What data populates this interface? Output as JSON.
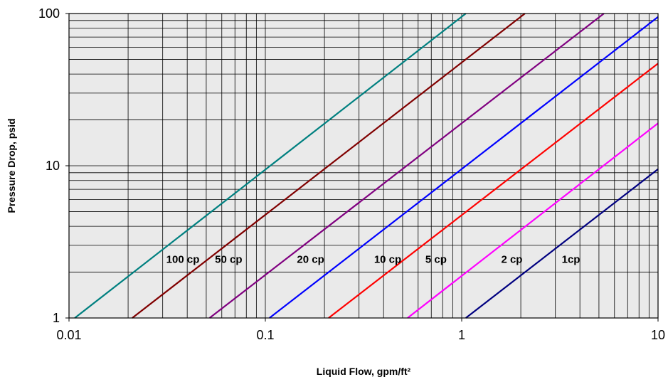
{
  "chart_data": {
    "type": "line",
    "xlabel": "Liquid Flow, gpm/ft²",
    "ylabel": "Pressure Drop, psid",
    "xscale": "log",
    "yscale": "log",
    "xlim": [
      0.01,
      10
    ],
    "ylim": [
      1,
      100
    ],
    "grid": true,
    "plot_background": "#eaeaea",
    "x_ticks": [
      {
        "value": 0.01,
        "label": "0.01"
      },
      {
        "value": 0.1,
        "label": "0.1"
      },
      {
        "value": 1,
        "label": "1"
      },
      {
        "value": 10,
        "label": "10"
      }
    ],
    "y_ticks": [
      {
        "value": 1,
        "label": "1"
      },
      {
        "value": 10,
        "label": "10"
      },
      {
        "value": 100,
        "label": "100"
      }
    ],
    "series": [
      {
        "name": "100 cp",
        "color": "#008080",
        "label_at": {
          "x": 0.038,
          "y": 2.3
        },
        "x": [
          0.0107,
          1.05
        ],
        "y": [
          1,
          100
        ]
      },
      {
        "name": "50 cp",
        "color": "#800000",
        "label_at": {
          "x": 0.065,
          "y": 2.3
        },
        "x": [
          0.021,
          2.1
        ],
        "y": [
          1,
          100
        ]
      },
      {
        "name": "20 cp",
        "color": "#800080",
        "label_at": {
          "x": 0.17,
          "y": 2.3
        },
        "x": [
          0.052,
          5.3
        ],
        "y": [
          1,
          100
        ]
      },
      {
        "name": "10 cp",
        "color": "#0000ff",
        "label_at": {
          "x": 0.42,
          "y": 2.3
        },
        "x": [
          0.105,
          10
        ],
        "y": [
          1,
          95
        ]
      },
      {
        "name": "5 cp",
        "color": "#ff0000",
        "label_at": {
          "x": 0.74,
          "y": 2.3
        },
        "x": [
          0.21,
          10
        ],
        "y": [
          1,
          47
        ]
      },
      {
        "name": "2 cp",
        "color": "#ff00ff",
        "label_at": {
          "x": 1.8,
          "y": 2.3
        },
        "x": [
          0.53,
          10
        ],
        "y": [
          1,
          19
        ]
      },
      {
        "name": "1cp",
        "color": "#000080",
        "label_at": {
          "x": 3.6,
          "y": 2.3
        },
        "x": [
          1.05,
          10
        ],
        "y": [
          1,
          9.5
        ]
      }
    ]
  }
}
